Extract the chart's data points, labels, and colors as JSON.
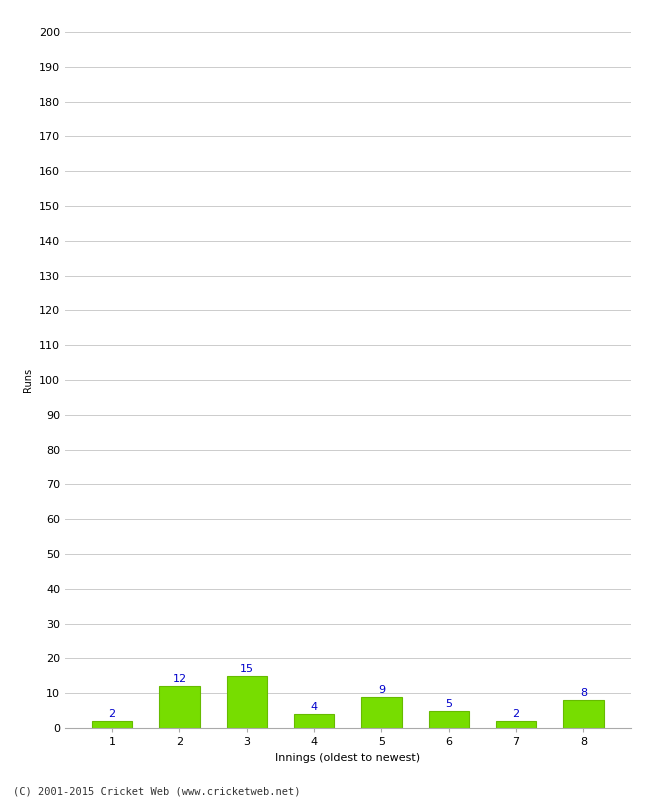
{
  "xlabel": "Innings (oldest to newest)",
  "ylabel": "Runs",
  "categories": [
    "1",
    "2",
    "3",
    "4",
    "5",
    "6",
    "7",
    "8"
  ],
  "values": [
    2,
    12,
    15,
    4,
    9,
    5,
    2,
    8
  ],
  "bar_color": "#77dd00",
  "bar_edge_color": "#66bb00",
  "label_color": "#0000cc",
  "ylim": [
    0,
    200
  ],
  "yticks": [
    0,
    10,
    20,
    30,
    40,
    50,
    60,
    70,
    80,
    90,
    100,
    110,
    120,
    130,
    140,
    150,
    160,
    170,
    180,
    190,
    200
  ],
  "background_color": "#ffffff",
  "grid_color": "#cccccc",
  "footer": "(C) 2001-2015 Cricket Web (www.cricketweb.net)",
  "label_fontsize": 8,
  "axis_fontsize": 8,
  "ylabel_fontsize": 7,
  "xlabel_fontsize": 8,
  "footer_fontsize": 7.5
}
